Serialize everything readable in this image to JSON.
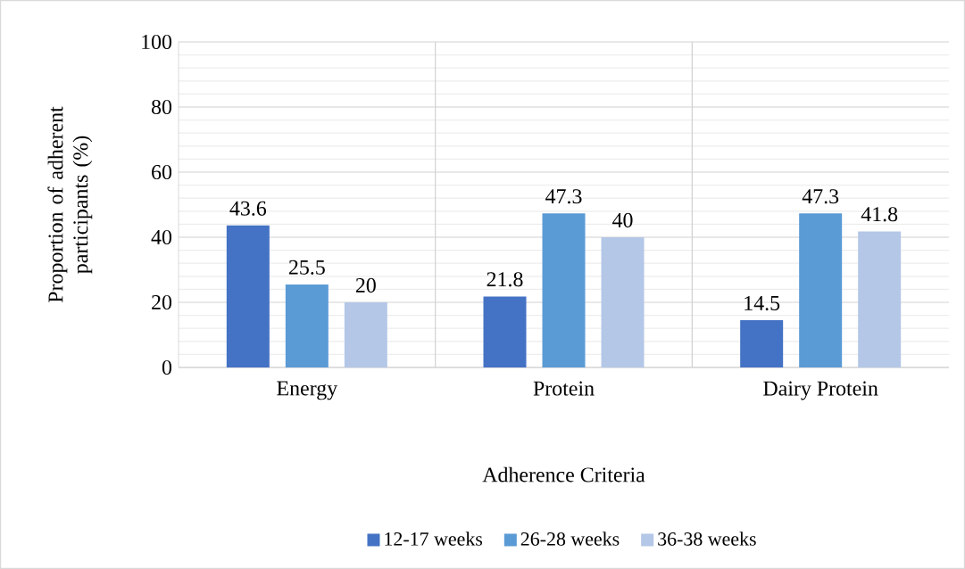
{
  "chart_data": {
    "type": "bar",
    "xlabel": "Adherence Criteria",
    "ylabel": "Proportion of adherent participants (%)",
    "categories": [
      "Energy",
      "Protein",
      "Dairy Protein"
    ],
    "series": [
      {
        "name": "12-17 weeks",
        "color": "#4472c4",
        "values": [
          43.6,
          21.8,
          14.5
        ]
      },
      {
        "name": "26-28 weeks",
        "color": "#5b9bd5",
        "values": [
          25.5,
          47.3,
          47.3
        ]
      },
      {
        "name": "36-38 weeks",
        "color": "#b4c7e7",
        "values": [
          20,
          40,
          41.8
        ]
      }
    ],
    "ylim": [
      0,
      100
    ],
    "yticks": [
      0,
      20,
      40,
      60,
      80,
      100
    ],
    "grid": true,
    "legend": "bottom",
    "data_labels": true
  }
}
